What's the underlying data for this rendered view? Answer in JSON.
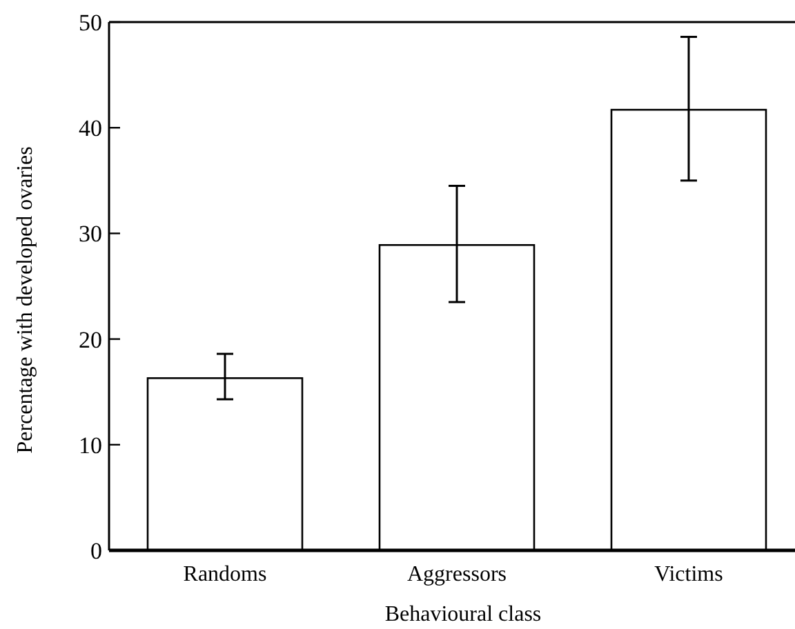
{
  "chart_data": {
    "type": "bar",
    "xlabel": "Behavioural class",
    "ylabel": "Percentage with developed ovaries",
    "categories": [
      "Randoms",
      "Aggressors",
      "Victims"
    ],
    "values": [
      16.3,
      28.9,
      41.7
    ],
    "color": "#ffffff",
    "errors": [
      [
        14.3,
        18.6
      ],
      [
        23.5,
        34.5
      ],
      [
        35.0,
        48.6
      ]
    ],
    "ylim": [
      0,
      50
    ],
    "yticks": [
      0,
      10,
      20,
      30,
      40,
      50
    ],
    "grid": false
  }
}
